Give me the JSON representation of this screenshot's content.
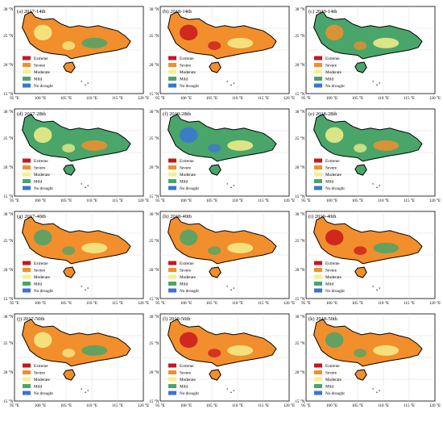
{
  "figure": {
    "legend_entries": [
      {
        "label": "Extreme",
        "color": "#c8161d"
      },
      {
        "label": "Severe",
        "color": "#f28e2c"
      },
      {
        "label": "Moderate",
        "color": "#f5f08a"
      },
      {
        "label": "Mild",
        "color": "#4aa56a"
      },
      {
        "label": "No drought",
        "color": "#3b73d8"
      }
    ],
    "x_ticks": [
      "95 °E",
      "100 °E",
      "105 °E",
      "110 °E",
      "115 °E",
      "120 °E"
    ],
    "y_ticks": [
      "30 °N",
      "25 °N",
      "20 °N",
      "15 °N"
    ],
    "panels": [
      {
        "label": "(a) 2017-14th",
        "fill": "#f28e2c",
        "accents": [
          "#f5f08a",
          "#4aa56a"
        ]
      },
      {
        "label": "(b) 2018-14th",
        "fill": "#f28e2c",
        "accents": [
          "#c8161d",
          "#f5f08a"
        ]
      },
      {
        "label": "(c) 2019-14th",
        "fill": "#4aa56a",
        "accents": [
          "#f28e2c",
          "#f5f08a"
        ]
      },
      {
        "label": "(d) 2017-28th",
        "fill": "#4aa56a",
        "accents": [
          "#f5f08a",
          "#f28e2c"
        ]
      },
      {
        "label": "(f) 2019-28th",
        "fill": "#4aa56a",
        "accents": [
          "#3b73d8",
          "#f5f08a"
        ]
      },
      {
        "label": "(e) 2018-28th",
        "fill": "#4aa56a",
        "accents": [
          "#f5f08a",
          "#f28e2c"
        ]
      },
      {
        "label": "(g) 2017-40th",
        "fill": "#f28e2c",
        "accents": [
          "#4aa56a",
          "#f5f08a"
        ]
      },
      {
        "label": "(h) 2018-40th",
        "fill": "#f28e2c",
        "accents": [
          "#4aa56a",
          "#f5f08a"
        ]
      },
      {
        "label": "(i) 2019-40th",
        "fill": "#f28e2c",
        "accents": [
          "#c8161d",
          "#4aa56a"
        ]
      },
      {
        "label": "(j) 2017-50th",
        "fill": "#f28e2c",
        "accents": [
          "#f5f08a",
          "#4aa56a"
        ]
      },
      {
        "label": "(l) 2019-50th",
        "fill": "#f28e2c",
        "accents": [
          "#c8161d",
          "#f5f08a"
        ]
      },
      {
        "label": "(k) 2018-50th",
        "fill": "#f28e2c",
        "accents": [
          "#4aa56a",
          "#f5f08a"
        ]
      }
    ]
  }
}
